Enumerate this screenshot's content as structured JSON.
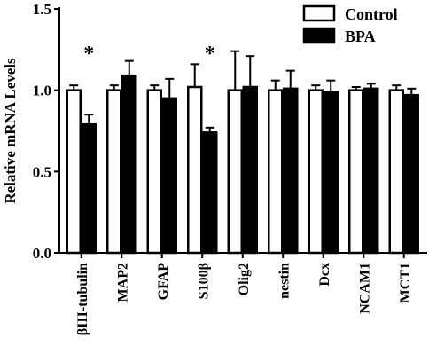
{
  "chart_data": {
    "type": "bar",
    "title": "",
    "xlabel": "",
    "ylabel": "Relative mRNA Levels",
    "ylim": [
      0,
      1.5
    ],
    "yticks": [
      "0.0",
      "0.5",
      "1.0",
      "1.5"
    ],
    "ytick_values": [
      0,
      0.5,
      1.0,
      1.5
    ],
    "grid": false,
    "legend_position": "top-right",
    "categories": [
      "βIII-tubulin",
      "MAP2",
      "GFAP",
      "S100β",
      "Olig2",
      "nestin",
      "Dcx",
      "NCAM1",
      "MCT1"
    ],
    "series": [
      {
        "name": "Control",
        "fill": "#ffffff",
        "values": [
          1.0,
          1.0,
          1.0,
          1.02,
          1.0,
          1.0,
          1.0,
          1.0,
          1.0
        ],
        "errors": [
          0.03,
          0.03,
          0.03,
          0.14,
          0.24,
          0.06,
          0.03,
          0.02,
          0.03
        ]
      },
      {
        "name": "BPA",
        "fill": "#000000",
        "values": [
          0.79,
          1.09,
          0.95,
          0.74,
          1.02,
          1.01,
          0.99,
          1.01,
          0.97
        ],
        "errors": [
          0.06,
          0.09,
          0.12,
          0.03,
          0.19,
          0.11,
          0.07,
          0.03,
          0.04
        ]
      }
    ],
    "annotations": [
      {
        "category": "βIII-tubulin",
        "text": "*",
        "value": 1.26
      },
      {
        "category": "S100β",
        "text": "*",
        "value": 1.26
      }
    ]
  }
}
